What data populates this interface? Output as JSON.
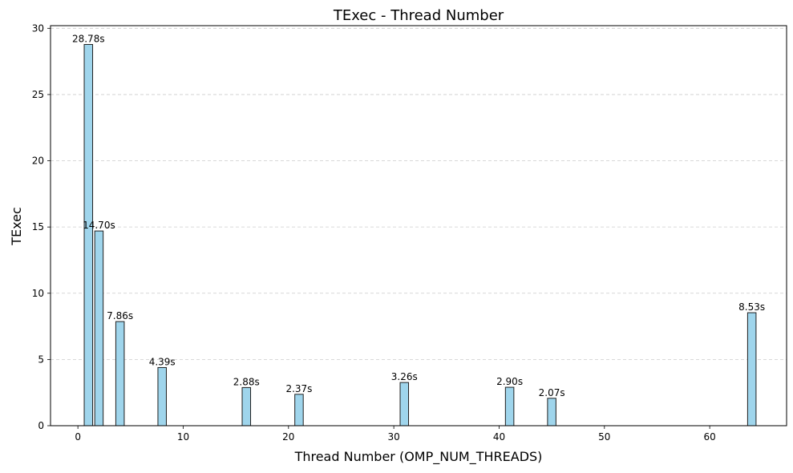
{
  "chart_data": {
    "type": "bar",
    "title": "TExec - Thread Number",
    "xlabel": "Thread Number (OMP_NUM_THREADS)",
    "ylabel": "TExec",
    "x": [
      1,
      2,
      4,
      8,
      16,
      21,
      31,
      41,
      45,
      64
    ],
    "values": [
      28.78,
      14.7,
      7.86,
      4.39,
      2.88,
      2.37,
      3.26,
      2.9,
      2.07,
      8.53
    ],
    "data_labels": [
      "28.78s",
      "14.70s",
      "7.86s",
      "4.39s",
      "2.88s",
      "2.37s",
      "3.26s",
      "2.90s",
      "2.07s",
      "8.53s"
    ],
    "xticks": [
      0,
      10,
      20,
      30,
      40,
      50,
      60
    ],
    "xtick_labels": [
      "0",
      "10",
      "20",
      "30",
      "40",
      "50",
      "60"
    ],
    "yticks": [
      0,
      5,
      10,
      15,
      20,
      25,
      30
    ],
    "ytick_labels": [
      "0",
      "5",
      "10",
      "15",
      "20",
      "25",
      "30"
    ],
    "xlim": [
      -2.6,
      67.3
    ],
    "ylim": [
      0,
      30.2
    ],
    "bar_width": 0.8,
    "grid": "y-dashed",
    "colors": {
      "bar_fill": "#9fd5ec",
      "bar_edge": "#1f1f1f",
      "grid": "#cccccc"
    }
  }
}
